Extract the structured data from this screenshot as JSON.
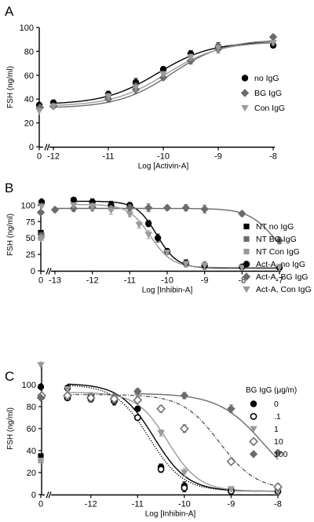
{
  "chart_data": [
    {
      "type": "scatter",
      "panel_label": "A",
      "ylabel": "FSH (ng/ml)",
      "xlabel": "Log [Activin-A]",
      "control_tick_label": "0",
      "ylim": [
        0,
        100
      ],
      "xlim": [
        -12,
        -8
      ],
      "yticks": [
        0,
        20,
        40,
        60,
        80,
        100
      ],
      "xticks": [
        -12,
        -11,
        -10,
        -9,
        -8
      ],
      "legend_position": "right",
      "series": [
        {
          "name": "no IgG",
          "marker": "circle",
          "color": "#000000",
          "control": 35,
          "x": [
            -12,
            -11,
            -10.5,
            -10,
            -9.5,
            -9,
            -8
          ],
          "y": [
            37,
            44,
            54,
            65,
            78,
            84,
            85
          ],
          "curve": {
            "bottom": 35.5,
            "top": 88,
            "ec50": -10.1,
            "hill": 0.9
          }
        },
        {
          "name": "BG IgG",
          "marker": "diamond",
          "color": "#6b6b6b",
          "control": 33,
          "x": [
            -12,
            -11,
            -10.5,
            -10,
            -9.5,
            -9,
            -8
          ],
          "y": [
            34,
            40,
            48,
            58,
            72,
            82,
            92
          ],
          "curve": {
            "bottom": 32.5,
            "top": 90,
            "ec50": -9.85,
            "hill": 0.9
          }
        },
        {
          "name": "Con IgG",
          "marker": "triangle",
          "color": "#9a9a9a",
          "control": 30,
          "x": [
            -12,
            -11,
            -10.5,
            -10,
            -9.5,
            -9,
            -8
          ],
          "y": [
            34,
            42,
            50,
            61,
            75,
            83,
            87
          ],
          "curve": {
            "bottom": 34,
            "top": 88,
            "ec50": -9.95,
            "hill": 0.9
          }
        }
      ]
    },
    {
      "type": "scatter",
      "panel_label": "B",
      "ylabel": "FSH (ng/ml)",
      "xlabel": "Log [Inhibin-A]",
      "control_tick_label": "0",
      "ylim": [
        0,
        110
      ],
      "xlim": [
        -13,
        -7
      ],
      "yticks": [
        0,
        25,
        50,
        75,
        100
      ],
      "xticks": [
        -13,
        -12,
        -11,
        -10,
        -9,
        -8,
        -7
      ],
      "legend_position": "right",
      "series": [
        {
          "name": "NT no IgG",
          "marker": "square",
          "color": "#000000",
          "control": 58
        },
        {
          "name": "NT BG IgG",
          "marker": "square",
          "color": "#6b6b6b",
          "control": 54
        },
        {
          "name": "NT Con IgG",
          "marker": "square",
          "color": "#9a9a9a",
          "control": 50
        },
        {
          "name": "Act-A, no IgG",
          "marker": "circle",
          "color": "#000000",
          "control": 105,
          "x": [
            -12.5,
            -12,
            -11.5,
            -11,
            -10.5,
            -10.25,
            -10,
            -9.5,
            -9,
            -8,
            -7
          ],
          "y": [
            108,
            105,
            100,
            100,
            72,
            50,
            30,
            12,
            8,
            6,
            5
          ],
          "curve": {
            "bottom": 4,
            "top": 106,
            "ec50": -10.28,
            "hill": 1.6
          }
        },
        {
          "name": "Act-A, BG IgG",
          "marker": "diamond",
          "color": "#6b6b6b",
          "control": 89,
          "x": [
            -13,
            -12.5,
            -12,
            -11.5,
            -11,
            -10.5,
            -10,
            -9.5,
            -9,
            -8,
            -7
          ],
          "y": [
            93,
            95,
            97,
            95,
            96,
            96,
            96,
            96,
            94,
            87,
            46
          ],
          "curve": {
            "bottom": 0,
            "top": 95,
            "ec50": -7.1,
            "hill": 1.2
          }
        },
        {
          "name": "Act-A, Con IgG",
          "marker": "triangle",
          "color": "#9a9a9a",
          "control": 98,
          "x": [
            -12.5,
            -12,
            -11.5,
            -11,
            -10.75,
            -10.5,
            -10,
            -9.5,
            -9,
            -8,
            -7
          ],
          "y": [
            100,
            98,
            92,
            86,
            70,
            55,
            28,
            10,
            8,
            5,
            5
          ],
          "curve": {
            "bottom": 5,
            "top": 101,
            "ec50": -10.45,
            "hill": 1.5
          }
        }
      ]
    },
    {
      "type": "scatter",
      "panel_label": "C",
      "ylabel": "FSH (ng/ml)",
      "xlabel": "Log [Inhibin-A]",
      "control_tick_label": "0",
      "ylim": [
        0,
        120
      ],
      "xlim": [
        -12.6,
        -8
      ],
      "yticks": [
        0,
        20,
        40,
        60,
        80,
        100
      ],
      "xticks": [
        -12,
        -11,
        -10,
        -9,
        -8
      ],
      "legend_position": "right",
      "legend_title": "BG IgG (μg/m)",
      "series": [
        {
          "name": "0",
          "marker": "circle",
          "color": "#000000",
          "control": 98,
          "nt_control": 35,
          "x": [
            -12.5,
            -12,
            -11.5,
            -11,
            -10.5,
            -10,
            -9,
            -8
          ],
          "y": [
            97,
            90,
            88,
            78,
            25,
            8,
            4,
            3
          ],
          "curve": {
            "bottom": 3,
            "top": 101,
            "ec50": -10.65,
            "hill": 1.2,
            "style": "solid"
          }
        },
        {
          "name": ".1",
          "marker": "circle-open",
          "color": "#000000",
          "control": 89,
          "x": [
            -12.5,
            -12,
            -11.5,
            -11,
            -10.5,
            -10,
            -9,
            -8
          ],
          "y": [
            88,
            87,
            85,
            70,
            23,
            6,
            3,
            3
          ],
          "curve": {
            "bottom": 3,
            "top": 100,
            "ec50": -10.75,
            "hill": 1.2,
            "style": "dotted"
          }
        },
        {
          "name": "1",
          "marker": "triangle",
          "color": "#9a9a9a",
          "control": 118,
          "nt_control": 31,
          "x": [
            -12.5,
            -12,
            -11.5,
            -11,
            -10.5,
            -10,
            -9,
            -8
          ],
          "y": [
            96,
            90,
            88,
            90,
            56,
            20,
            5,
            3
          ],
          "curve": {
            "bottom": 3,
            "top": 93,
            "ec50": -10.35,
            "hill": 1.3,
            "style": "solid-gray"
          }
        },
        {
          "name": "10",
          "marker": "diamond-open",
          "color": "#6b6b6b",
          "control": 90,
          "x": [
            -12.5,
            -12,
            -11.5,
            -11,
            -10.5,
            -10,
            -9,
            -8
          ],
          "y": [
            90,
            88,
            87,
            86,
            78,
            60,
            30,
            7
          ],
          "curve": {
            "bottom": 4,
            "top": 91,
            "ec50": -9.25,
            "hill": 1.1,
            "style": "dashdot"
          }
        },
        {
          "name": "100",
          "marker": "diamond",
          "color": "#6b6b6b",
          "control": 88,
          "x": [
            -11,
            -10,
            -9,
            -8
          ],
          "y": [
            94,
            90,
            78,
            38
          ],
          "curve": {
            "bottom": 0,
            "top": 92,
            "ec50": -8.3,
            "hill": 0.9,
            "style": "solid-dark"
          }
        }
      ]
    }
  ]
}
